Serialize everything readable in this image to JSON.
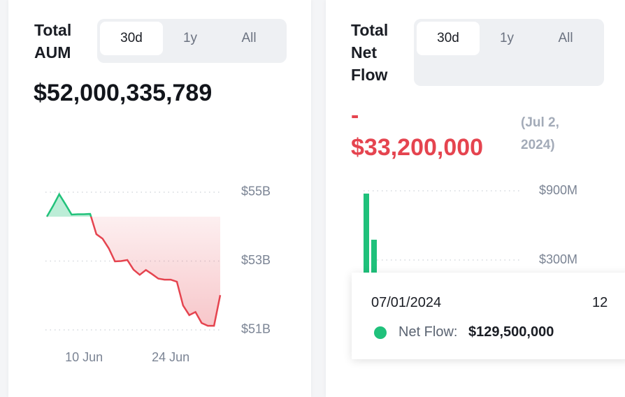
{
  "cards": [
    {
      "title": "Total AUM",
      "tabs": [
        "30d",
        "1y",
        "All"
      ],
      "value": "$52,000,335,789",
      "chart": {
        "type": "line",
        "categories": [
          null,
          null,
          null,
          null,
          null,
          null,
          "10 Jun",
          null,
          null,
          null,
          null,
          null,
          null,
          null,
          null,
          null,
          null,
          null,
          null,
          null,
          "24 Jun",
          null,
          null,
          null,
          null,
          null,
          null,
          null,
          null
        ],
        "values": [
          54.29,
          54.6,
          54.94,
          54.65,
          54.35,
          54.36,
          54.36,
          54.37,
          53.78,
          53.65,
          53.37,
          52.99,
          53.0,
          53.03,
          52.75,
          52.6,
          52.74,
          52.62,
          52.49,
          52.46,
          52.46,
          52.4,
          51.71,
          51.43,
          51.52,
          51.2,
          51.12,
          51.12,
          52.01
        ],
        "up_color": "#22c27b",
        "down_color": "#e5444f",
        "ylim": [
          50.6,
          55.3
        ],
        "yticks": [
          {
            "value": 51,
            "label": "$51B"
          },
          {
            "value": 53,
            "label": "$53B"
          },
          {
            "value": 55,
            "label": "$55B"
          }
        ],
        "grid": true
      }
    },
    {
      "title": "Total Net Flow",
      "tabs": [
        "30d",
        "1y",
        "All"
      ],
      "value_sign": "-",
      "value": "$33,200,000",
      "date": "(Jul 2, 2024)",
      "chart": {
        "type": "bar",
        "values": [
          876,
          476
        ],
        "color": "#1fc17b",
        "ylim": [
          0,
          950
        ],
        "yticks": [
          {
            "value": 300,
            "label": "$300M"
          },
          {
            "value": 900,
            "label": "$900M"
          }
        ],
        "grid": true
      },
      "tooltip": {
        "date": "07/01/2024",
        "clipped": "12",
        "label": "Net Flow:",
        "value": "$129,500,000"
      }
    }
  ]
}
